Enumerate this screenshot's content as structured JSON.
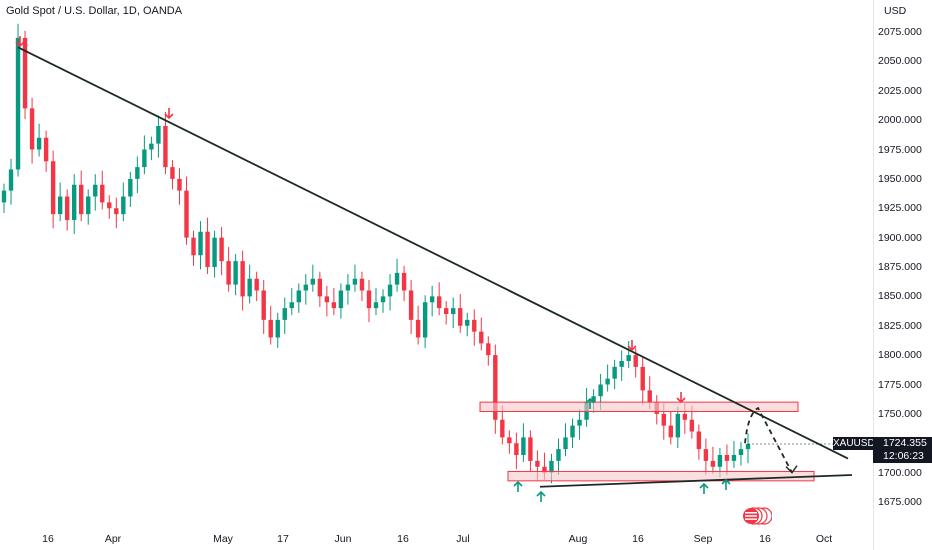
{
  "header": {
    "title": "Gold Spot / U.S. Dollar, 1D, OANDA"
  },
  "price_axis": {
    "currency": "USD",
    "labels": [
      "2075.000",
      "2050.000",
      "2025.000",
      "2000.000",
      "1975.000",
      "1950.000",
      "1925.000",
      "1900.000",
      "1875.000",
      "1850.000",
      "1825.000",
      "1800.000",
      "1775.000",
      "1750.000",
      "1725.000",
      "1700.000",
      "1675.000"
    ]
  },
  "time_axis": {
    "labels": [
      "16",
      "Apr",
      "May",
      "17",
      "Jun",
      "16",
      "Jul",
      "Aug",
      "16",
      "Sep",
      "16",
      "Oct"
    ]
  },
  "last_price": {
    "symbol": "XAUUSD",
    "price": "1724.355",
    "countdown": "12:06:23"
  },
  "colors": {
    "up": "#089981",
    "down": "#f23645",
    "trendline": "#1c2a24",
    "zone_fill": "#f8c9cc",
    "zone_border": "#f23645",
    "arrow_up": "#089981",
    "arrow_down": "#f23645",
    "badge": "#131722"
  },
  "icons": [
    "flag-icon",
    "arrow-up-icon",
    "arrow-down-icon"
  ],
  "chart_data": {
    "type": "candlestick",
    "title": "Gold Spot / U.S. Dollar, 1D, OANDA",
    "ylim": [
      1665,
      2090
    ],
    "yticks": [
      2075,
      2050,
      2025,
      2000,
      1975,
      1950,
      1925,
      1900,
      1875,
      1850,
      1825,
      1800,
      1775,
      1750,
      1725,
      1700,
      1675
    ],
    "x_tick_labels": [
      "16",
      "Apr",
      "May",
      "17",
      "Jun",
      "16",
      "Jul",
      "Aug",
      "16",
      "Sep",
      "16",
      "Oct"
    ],
    "close_series": [
      1940,
      1958,
      2070,
      2010,
      1975,
      1985,
      1965,
      1920,
      1935,
      1915,
      1945,
      1920,
      1935,
      1945,
      1930,
      1925,
      1920,
      1935,
      1950,
      1960,
      1975,
      1980,
      1995,
      1960,
      1950,
      1940,
      1900,
      1885,
      1905,
      1875,
      1900,
      1880,
      1860,
      1880,
      1850,
      1865,
      1855,
      1830,
      1815,
      1830,
      1840,
      1845,
      1855,
      1860,
      1865,
      1850,
      1845,
      1840,
      1855,
      1860,
      1865,
      1855,
      1840,
      1845,
      1850,
      1860,
      1870,
      1855,
      1830,
      1815,
      1845,
      1850,
      1840,
      1835,
      1840,
      1825,
      1830,
      1820,
      1810,
      1800,
      1745,
      1730,
      1725,
      1715,
      1730,
      1710,
      1705,
      1700,
      1710,
      1720,
      1730,
      1740,
      1745,
      1760,
      1765,
      1775,
      1780,
      1790,
      1795,
      1800,
      1790,
      1770,
      1760,
      1750,
      1740,
      1730,
      1750,
      1745,
      1735,
      1720,
      1710,
      1705,
      1715,
      1710,
      1715,
      1720,
      1724.355
    ],
    "levels": {
      "resistance_zone": [
        1752,
        1760
      ],
      "support_zone": [
        1693,
        1701
      ]
    },
    "trendlines": [
      {
        "name": "",
        "from": [
          2062,
          0
        ],
        "to": [
          1712,
          1
        ]
      },
      {
        "name": "",
        "from": [
          1688,
          0
        ],
        "to": [
          1698,
          1
        ]
      }
    ],
    "projection": [
      1725,
      1755,
      1700
    ],
    "current_price": 1724.355
  }
}
